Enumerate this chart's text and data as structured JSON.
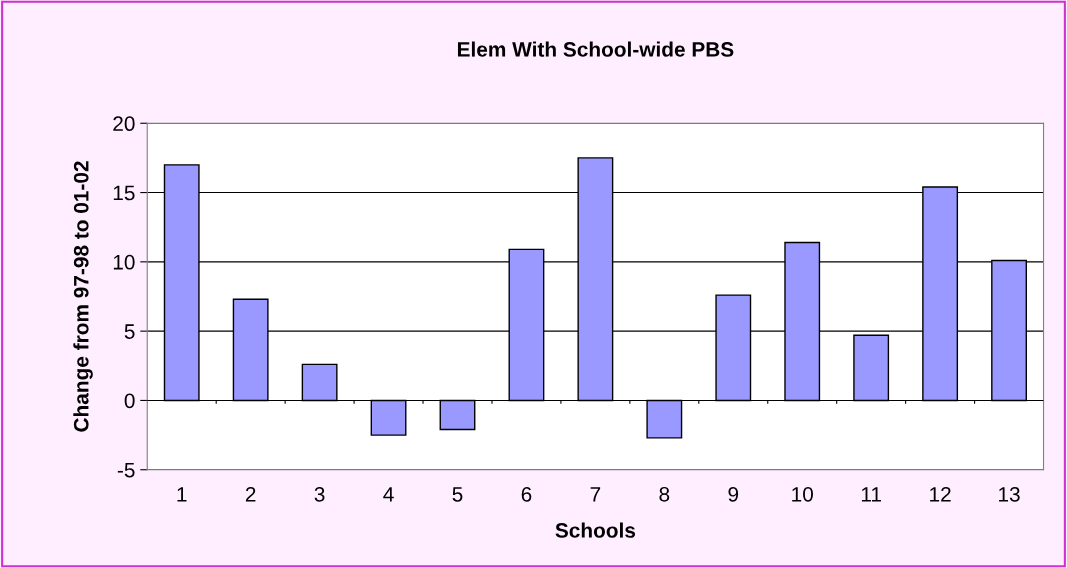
{
  "chart_data": {
    "type": "bar",
    "title": "Elem With School-wide PBS",
    "xlabel": "Schools",
    "ylabel": "Change from 97-98 to 01-02",
    "categories": [
      "1",
      "2",
      "3",
      "4",
      "5",
      "6",
      "7",
      "8",
      "9",
      "10",
      "11",
      "12",
      "13"
    ],
    "values": [
      17,
      7.3,
      2.6,
      -2.5,
      -2.1,
      10.9,
      17.5,
      -2.7,
      7.6,
      11.4,
      4.7,
      15.4,
      10.1
    ],
    "color": "#9999ff",
    "ylim": [
      -5,
      20
    ],
    "yticks": [
      -5,
      0,
      5,
      10,
      15,
      20
    ],
    "grid": "y"
  }
}
